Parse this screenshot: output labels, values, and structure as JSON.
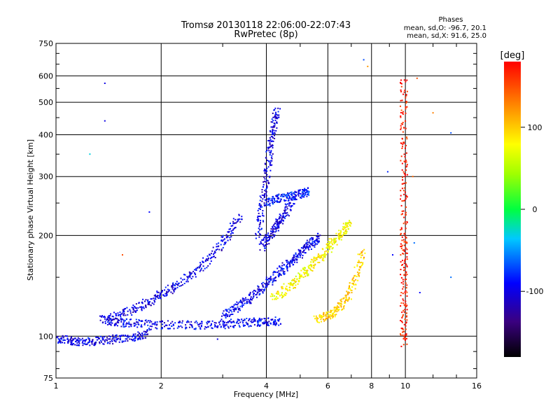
{
  "chart_data": {
    "type": "scatter",
    "title": "Tromsø 20130118 22:06:00-22:07:43",
    "subtitle": "RwPretec (8p)",
    "phase_box": {
      "heading": "Phases",
      "line_o": "mean, sd,O: -96.7, 20.1",
      "line_x": "mean, sd,X:  91.6, 25.0"
    },
    "xlabel": "Frequency [MHz]",
    "ylabel": "Stationary phase Virtual Height [km]",
    "x_scale": "log",
    "y_scale": "log",
    "xlim": [
      1,
      16
    ],
    "ylim": [
      75,
      750
    ],
    "x_ticks": [
      {
        "value": 1,
        "label": "1"
      },
      {
        "value": 2,
        "label": "2"
      },
      {
        "value": 4,
        "label": "4"
      },
      {
        "value": 6,
        "label": "6"
      },
      {
        "value": 8,
        "label": "8"
      },
      {
        "value": 10,
        "label": "10"
      },
      {
        "value": 16,
        "label": "16"
      }
    ],
    "y_ticks": [
      {
        "value": 75,
        "label": "75"
      },
      {
        "value": 100,
        "label": "100"
      },
      {
        "value": 200,
        "label": "200"
      },
      {
        "value": 300,
        "label": "300"
      },
      {
        "value": 400,
        "label": "400"
      },
      {
        "value": 500,
        "label": "500"
      },
      {
        "value": 600,
        "label": "600"
      },
      {
        "value": 750,
        "label": "750"
      }
    ],
    "grid": true,
    "colorbar": {
      "label": "[deg]",
      "range": [
        -180,
        180
      ],
      "ticks": [
        {
          "value": 100,
          "label": "100"
        },
        {
          "value": 0,
          "label": "0"
        },
        {
          "value": -100,
          "label": "-100"
        }
      ]
    },
    "traces": [
      {
        "f": [
          1.0,
          1.1,
          1.2,
          1.35,
          1.5,
          1.7,
          1.85
        ],
        "h": [
          98,
          97,
          96,
          97,
          98,
          100,
          102
        ],
        "phase": -100
      },
      {
        "f": [
          1.35,
          1.5,
          1.7,
          2.0,
          2.4,
          2.8,
          3.2,
          3.6,
          4.0,
          4.4
        ],
        "h": [
          112,
          110,
          109,
          108,
          108,
          108,
          109,
          110,
          110,
          111
        ],
        "phase": -95
      },
      {
        "f": [
          1.4,
          1.6,
          1.8,
          2.0,
          2.2,
          2.5,
          2.8,
          3.1,
          3.4
        ],
        "h": [
          112,
          118,
          125,
          133,
          142,
          155,
          175,
          200,
          230
        ],
        "phase": -100
      },
      {
        "f": [
          3.0,
          3.3,
          3.6,
          3.9,
          4.2,
          4.5,
          4.8,
          5.1,
          5.4,
          5.7
        ],
        "h": [
          115,
          122,
          130,
          140,
          150,
          160,
          170,
          180,
          190,
          198
        ],
        "phase": -95
      },
      {
        "f": [
          3.9,
          4.1,
          4.3,
          4.5,
          4.8
        ],
        "h": [
          185,
          200,
          215,
          230,
          260
        ],
        "phase": -100
      },
      {
        "f": [
          3.8,
          3.9,
          4.0,
          4.1,
          4.2,
          4.3
        ],
        "h": [
          200,
          250,
          300,
          360,
          420,
          480
        ],
        "phase": -100
      },
      {
        "f": [
          4.0,
          4.3,
          4.7,
          5.0,
          5.3
        ],
        "h": [
          250,
          258,
          262,
          266,
          270
        ],
        "phase": -85
      },
      {
        "f": [
          4.2,
          4.6,
          5.0,
          5.4,
          5.8,
          6.2,
          6.6,
          7.0
        ],
        "h": [
          130,
          140,
          150,
          162,
          175,
          190,
          205,
          220
        ],
        "phase": 80
      },
      {
        "f": [
          5.6,
          6.0,
          6.4,
          6.8,
          7.2,
          7.6
        ],
        "h": [
          112,
          115,
          120,
          130,
          150,
          180
        ],
        "phase": 100
      },
      {
        "f": [
          9.9,
          9.9,
          9.9,
          9.9,
          9.9,
          9.9,
          9.9
        ],
        "h": [
          95,
          120,
          160,
          200,
          290,
          420,
          600
        ],
        "phase": 170
      }
    ],
    "isolated_points": [
      {
        "f": 1.38,
        "h": 570,
        "phase": -100
      },
      {
        "f": 1.38,
        "h": 440,
        "phase": -100
      },
      {
        "f": 1.25,
        "h": 350,
        "phase": -30
      },
      {
        "f": 1.85,
        "h": 235,
        "phase": -90
      },
      {
        "f": 1.55,
        "h": 175,
        "phase": 150
      },
      {
        "f": 2.9,
        "h": 98,
        "phase": -100
      },
      {
        "f": 10.8,
        "h": 590,
        "phase": 150
      },
      {
        "f": 10.5,
        "h": 300,
        "phase": 140
      },
      {
        "f": 10.6,
        "h": 190,
        "phase": -60
      },
      {
        "f": 11.0,
        "h": 135,
        "phase": -90
      },
      {
        "f": 13.5,
        "h": 405,
        "phase": -70
      },
      {
        "f": 13.5,
        "h": 150,
        "phase": -60
      },
      {
        "f": 12.0,
        "h": 465,
        "phase": 130
      },
      {
        "f": 8.9,
        "h": 310,
        "phase": -80
      },
      {
        "f": 9.2,
        "h": 175,
        "phase": -90
      },
      {
        "f": 7.6,
        "h": 670,
        "phase": -70
      },
      {
        "f": 7.8,
        "h": 640,
        "phase": 120
      }
    ]
  }
}
